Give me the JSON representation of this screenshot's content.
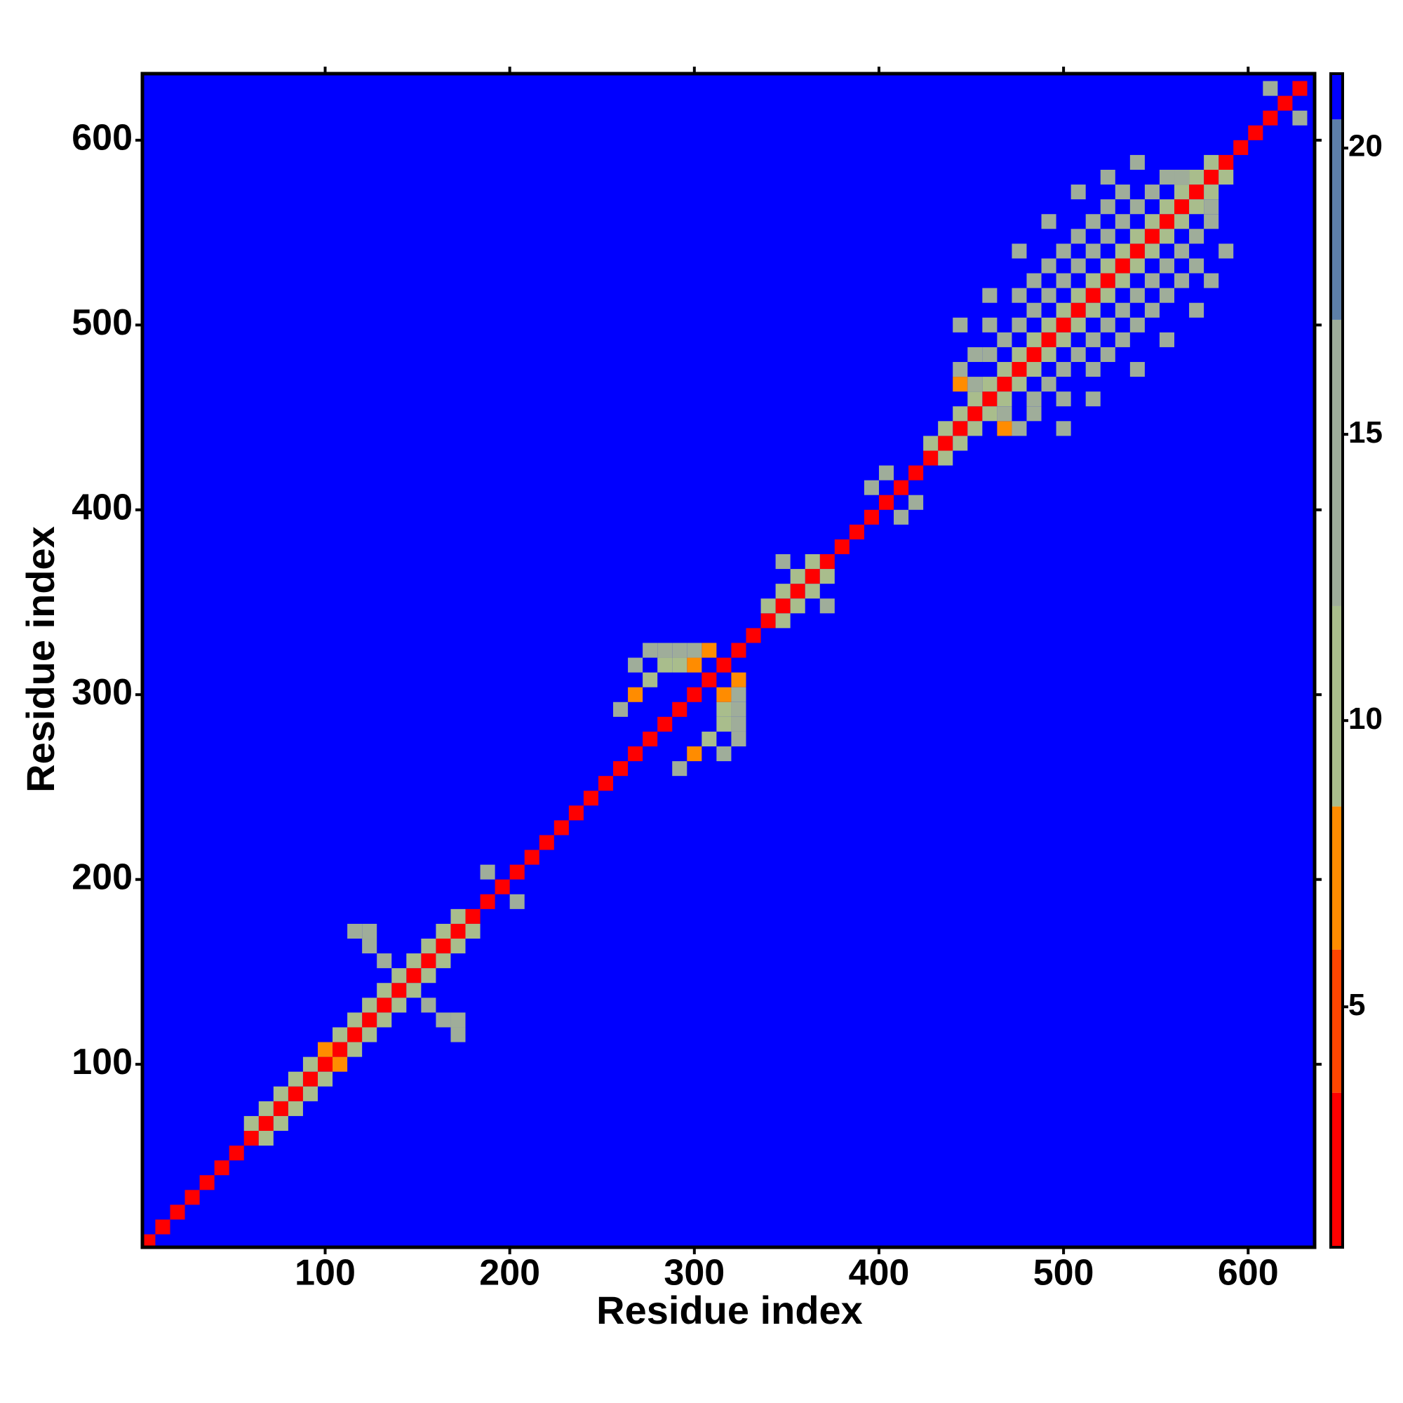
{
  "chart_data": {
    "type": "heatmap",
    "x_label": "Residue index",
    "y_label": "Residue index",
    "xlim": [
      1,
      636
    ],
    "ylim": [
      1,
      636
    ],
    "xticks": [
      100,
      200,
      300,
      400,
      500,
      600
    ],
    "yticks": [
      100,
      200,
      300,
      400,
      500,
      600
    ],
    "zlim": [
      0.8,
      21.3
    ],
    "zticks": [
      5,
      10,
      15,
      20
    ],
    "colorscale": [
      {
        "value": 0.8,
        "color": "#ff0000"
      },
      {
        "value": 3.5,
        "color": "#ff4500"
      },
      {
        "value": 6,
        "color": "#ff8c00"
      },
      {
        "value": 8.5,
        "color": "#a9bd8c"
      },
      {
        "value": 12,
        "color": "#9fad9a"
      },
      {
        "value": 17,
        "color": "#5d7fa8"
      },
      {
        "value": 20.5,
        "color": "#0000ff"
      }
    ],
    "symmetric": true,
    "cells": [
      [
        4,
        4,
        2
      ],
      [
        12,
        12,
        2
      ],
      [
        20,
        20,
        2
      ],
      [
        28,
        28,
        2
      ],
      [
        36,
        36,
        2
      ],
      [
        44,
        44,
        2
      ],
      [
        52,
        52,
        2
      ],
      [
        60,
        60,
        2
      ],
      [
        68,
        68,
        2
      ],
      [
        76,
        76,
        2
      ],
      [
        84,
        84,
        2
      ],
      [
        92,
        92,
        2
      ],
      [
        100,
        100,
        2
      ],
      [
        108,
        108,
        2
      ],
      [
        116,
        116,
        2
      ],
      [
        124,
        124,
        2
      ],
      [
        132,
        132,
        2
      ],
      [
        140,
        140,
        2
      ],
      [
        148,
        148,
        2
      ],
      [
        156,
        156,
        2
      ],
      [
        164,
        164,
        2
      ],
      [
        172,
        172,
        2
      ],
      [
        180,
        180,
        2
      ],
      [
        188,
        188,
        2
      ],
      [
        196,
        196,
        2
      ],
      [
        204,
        204,
        2
      ],
      [
        212,
        212,
        2
      ],
      [
        220,
        220,
        2
      ],
      [
        228,
        228,
        2
      ],
      [
        236,
        236,
        2
      ],
      [
        244,
        244,
        2
      ],
      [
        252,
        252,
        2
      ],
      [
        260,
        260,
        2
      ],
      [
        268,
        268,
        2
      ],
      [
        276,
        276,
        2
      ],
      [
        284,
        284,
        2
      ],
      [
        292,
        292,
        2
      ],
      [
        300,
        300,
        2
      ],
      [
        308,
        308,
        2
      ],
      [
        316,
        316,
        2
      ],
      [
        324,
        324,
        2
      ],
      [
        332,
        332,
        2
      ],
      [
        340,
        340,
        2
      ],
      [
        348,
        348,
        2
      ],
      [
        356,
        356,
        2
      ],
      [
        364,
        364,
        2
      ],
      [
        372,
        372,
        2
      ],
      [
        380,
        380,
        2
      ],
      [
        388,
        388,
        2
      ],
      [
        396,
        396,
        2
      ],
      [
        404,
        404,
        2
      ],
      [
        412,
        412,
        2
      ],
      [
        420,
        420,
        2
      ],
      [
        428,
        428,
        2
      ],
      [
        436,
        436,
        2
      ],
      [
        444,
        444,
        2
      ],
      [
        452,
        452,
        2
      ],
      [
        460,
        460,
        2
      ],
      [
        468,
        468,
        2
      ],
      [
        476,
        476,
        2
      ],
      [
        484,
        484,
        2
      ],
      [
        492,
        492,
        2
      ],
      [
        500,
        500,
        2
      ],
      [
        508,
        508,
        2
      ],
      [
        516,
        516,
        2
      ],
      [
        524,
        524,
        2
      ],
      [
        532,
        532,
        2
      ],
      [
        540,
        540,
        2
      ],
      [
        548,
        548,
        2
      ],
      [
        556,
        556,
        2
      ],
      [
        564,
        564,
        2
      ],
      [
        572,
        572,
        2
      ],
      [
        580,
        580,
        2
      ],
      [
        588,
        588,
        2
      ],
      [
        596,
        596,
        2
      ],
      [
        604,
        604,
        2
      ],
      [
        612,
        612,
        2
      ],
      [
        620,
        620,
        2
      ],
      [
        628,
        628,
        2
      ],
      [
        60,
        68,
        11
      ],
      [
        68,
        76,
        11
      ],
      [
        76,
        84,
        11
      ],
      [
        84,
        92,
        11
      ],
      [
        92,
        100,
        11
      ],
      [
        100,
        108,
        7
      ],
      [
        108,
        116,
        11
      ],
      [
        116,
        124,
        11
      ],
      [
        124,
        132,
        11
      ],
      [
        132,
        140,
        11
      ],
      [
        140,
        148,
        11
      ],
      [
        148,
        156,
        11
      ],
      [
        156,
        164,
        11
      ],
      [
        164,
        172,
        11
      ],
      [
        172,
        180,
        11
      ],
      [
        340,
        348,
        11
      ],
      [
        348,
        356,
        11
      ],
      [
        356,
        364,
        11
      ],
      [
        364,
        372,
        11
      ],
      [
        428,
        436,
        11
      ],
      [
        436,
        444,
        11
      ],
      [
        444,
        452,
        11
      ],
      [
        452,
        460,
        11
      ],
      [
        460,
        468,
        11
      ],
      [
        468,
        476,
        11
      ],
      [
        476,
        484,
        11
      ],
      [
        484,
        492,
        11
      ],
      [
        492,
        500,
        11
      ],
      [
        500,
        508,
        11
      ],
      [
        508,
        516,
        11
      ],
      [
        516,
        524,
        11
      ],
      [
        524,
        532,
        11
      ],
      [
        532,
        540,
        11
      ],
      [
        540,
        548,
        11
      ],
      [
        548,
        556,
        11
      ],
      [
        556,
        564,
        11
      ],
      [
        564,
        572,
        11
      ],
      [
        572,
        580,
        11
      ],
      [
        580,
        588,
        11
      ],
      [
        124,
        164,
        13
      ],
      [
        124,
        172,
        14
      ],
      [
        132,
        156,
        12
      ],
      [
        116,
        172,
        15
      ],
      [
        188,
        204,
        13
      ],
      [
        268,
        300,
        7
      ],
      [
        276,
        308,
        11
      ],
      [
        276,
        324,
        14
      ],
      [
        284,
        316,
        11
      ],
      [
        292,
        316,
        11
      ],
      [
        300,
        316,
        7
      ],
      [
        308,
        324,
        7
      ],
      [
        292,
        324,
        12
      ],
      [
        268,
        316,
        14
      ],
      [
        284,
        324,
        13
      ],
      [
        300,
        324,
        12
      ],
      [
        260,
        292,
        14
      ],
      [
        348,
        372,
        12
      ],
      [
        396,
        412,
        12
      ],
      [
        404,
        420,
        12
      ],
      [
        444,
        468,
        8
      ],
      [
        444,
        476,
        12
      ],
      [
        452,
        468,
        12
      ],
      [
        452,
        484,
        13
      ],
      [
        460,
        484,
        12
      ],
      [
        460,
        500,
        13
      ],
      [
        468,
        492,
        12
      ],
      [
        476,
        500,
        12
      ],
      [
        476,
        516,
        13
      ],
      [
        484,
        508,
        12
      ],
      [
        484,
        524,
        13
      ],
      [
        492,
        516,
        12
      ],
      [
        492,
        532,
        14
      ],
      [
        500,
        524,
        12
      ],
      [
        500,
        540,
        13
      ],
      [
        508,
        532,
        12
      ],
      [
        508,
        548,
        13
      ],
      [
        516,
        540,
        12
      ],
      [
        516,
        556,
        13
      ],
      [
        524,
        548,
        12
      ],
      [
        524,
        564,
        14
      ],
      [
        532,
        556,
        12
      ],
      [
        532,
        572,
        14
      ],
      [
        540,
        564,
        12
      ],
      [
        548,
        572,
        12
      ],
      [
        556,
        580,
        13
      ],
      [
        564,
        580,
        12
      ],
      [
        444,
        500,
        15
      ],
      [
        460,
        516,
        15
      ],
      [
        476,
        540,
        15
      ],
      [
        492,
        556,
        15
      ],
      [
        508,
        572,
        15
      ],
      [
        524,
        580,
        16
      ],
      [
        540,
        588,
        16
      ],
      [
        612,
        628,
        14
      ]
    ]
  }
}
